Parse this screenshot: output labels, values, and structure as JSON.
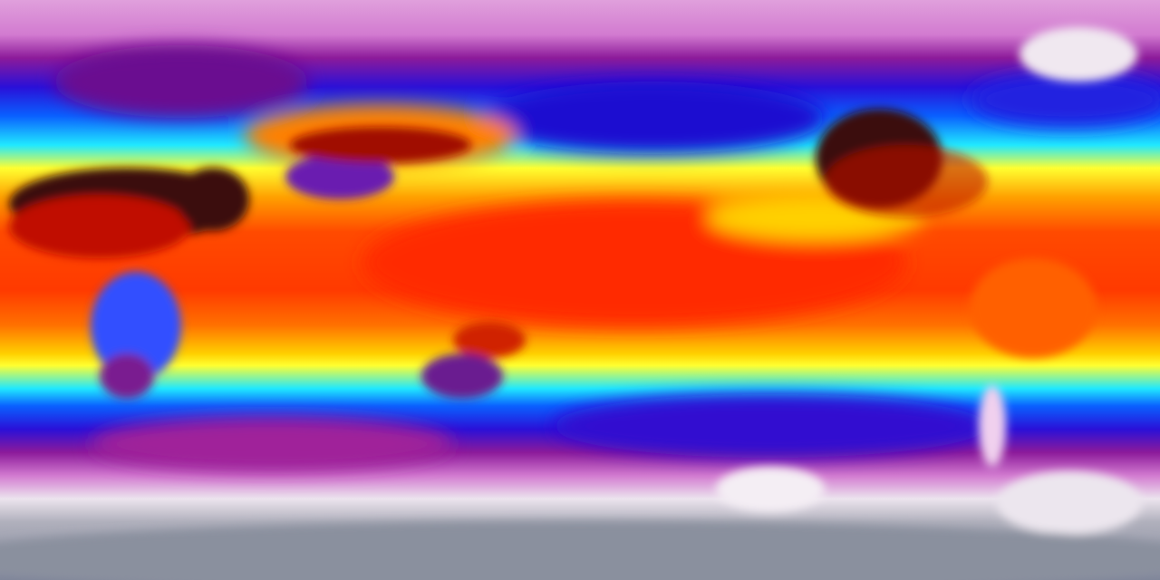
{
  "map": {
    "projection": "equirectangular",
    "variable_colormap": [
      "#8a8f9e",
      "#e8e4ec",
      "#d27ad0",
      "#9a1a98",
      "#2a10d8",
      "#0a50ff",
      "#20e0ff",
      "#ffff20",
      "#ffb000",
      "#ff4a00",
      "#e01000",
      "#3a0808"
    ],
    "colors": {
      "polar_north": "#d98ad2",
      "subpolar": "#8c1a9a",
      "midlat_ocean": "#1030e8",
      "temperate": "#20d8ff",
      "subtropic": "#ffee10",
      "tropic": "#ff4a00",
      "hot_land": "#2a0606",
      "high_plateau": "#6a1ab0",
      "greenland": "#f0e8f0",
      "antarctica": "#8a909e"
    }
  }
}
